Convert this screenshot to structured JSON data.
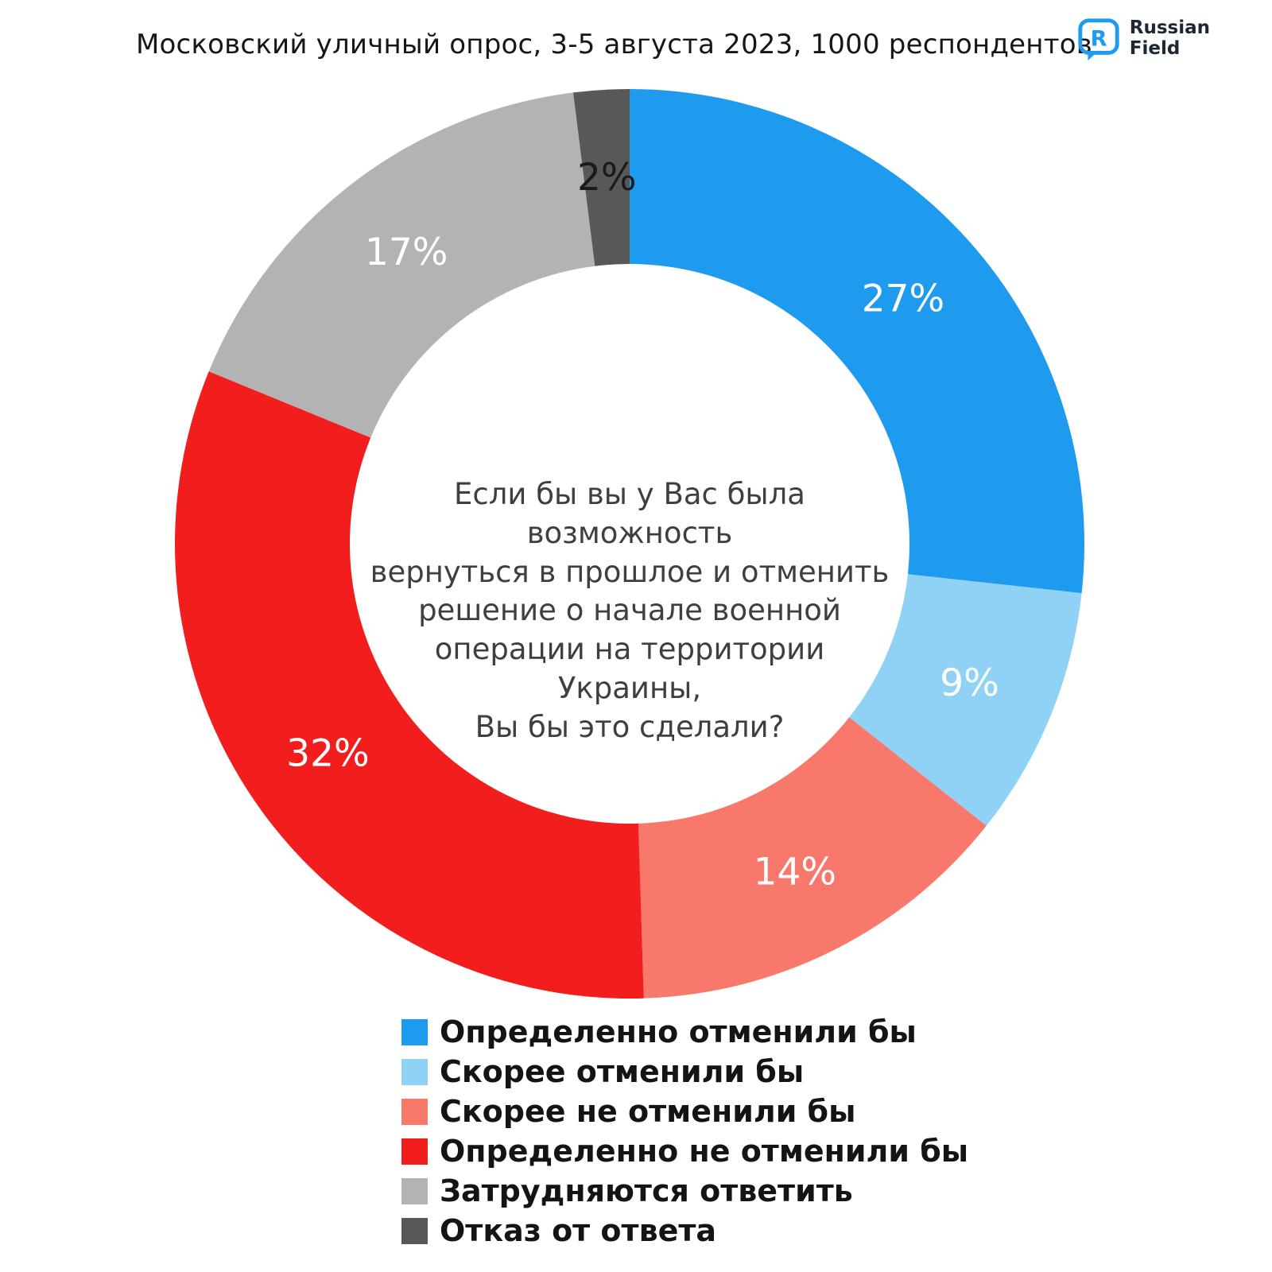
{
  "header": {
    "title": "Московский уличный опрос, 3-5 августа 2023, 1000 респондентов",
    "logo": {
      "line1": "Russian",
      "line2": "Field",
      "letter": "R",
      "color": "#1E9BF0"
    }
  },
  "chart_data": {
    "type": "pie",
    "subtype": "donut",
    "title": "Московский уличный опрос, 3-5 августа 2023, 1000 респондентов",
    "start_angle_deg": -90,
    "direction": "clockwise",
    "unit": "%",
    "legend_position": "bottom",
    "center_question_lines": [
      "Если бы вы у Вас была возможность",
      "вернуться в прошлое и отменить",
      "решение о начале военной",
      "операции на территории Украины,",
      "Вы бы это сделали?"
    ],
    "segments": [
      {
        "label": "Определенно отменили бы",
        "value": 27,
        "color": "#1E9AEF",
        "value_label_color": "#FFFFFF"
      },
      {
        "label": "Скорее отменили бы",
        "value": 9,
        "color": "#8FD2F6",
        "value_label_color": "#FFFFFF"
      },
      {
        "label": "Скорее не отменили бы",
        "value": 14,
        "color": "#F8796B",
        "value_label_color": "#FFFFFF"
      },
      {
        "label": "Определенно не отменили бы",
        "value": 32,
        "color": "#F21D1D",
        "value_label_color": "#FFFFFF"
      },
      {
        "label": "Затрудняются ответить",
        "value": 17,
        "color": "#B3B3B3",
        "value_label_color": "#FFFFFF"
      },
      {
        "label": "Отказ от ответа",
        "value": 2,
        "color": "#58585A",
        "value_label_color": "#1A1A1A"
      }
    ]
  }
}
